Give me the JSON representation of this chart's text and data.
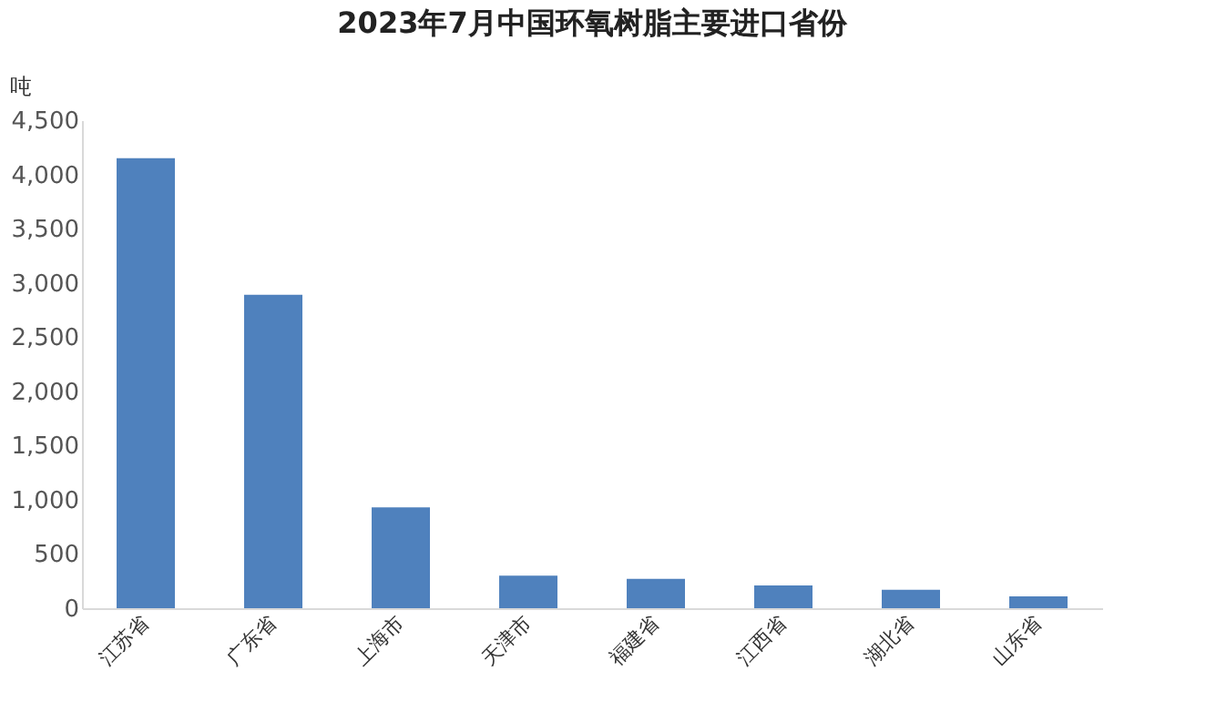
{
  "chart_data": {
    "type": "bar",
    "title": "2023年7月中国环氧树脂主要进口省份",
    "ylabel": "吨",
    "categories": [
      "江苏省",
      "广东省",
      "上海市",
      "天津市",
      "福建省",
      "江西省",
      "湖北省",
      "山东省"
    ],
    "values": [
      4150,
      2890,
      930,
      300,
      270,
      210,
      170,
      110
    ],
    "color": "#4f81bd",
    "ylim": [
      0,
      4500
    ],
    "yticks": [
      0,
      500,
      {
        "value": 1000,
        "label": "1,000"
      },
      {
        "value": 1500,
        "label": "1,500"
      },
      {
        "value": 2000,
        "label": "2,000"
      },
      {
        "value": 2500,
        "label": "2,500"
      },
      {
        "value": 3000,
        "label": "3,000"
      },
      {
        "value": 3500,
        "label": "3,500"
      },
      {
        "value": 4000,
        "label": "4,000"
      },
      {
        "value": 4500,
        "label": "4,500"
      }
    ],
    "grid": false
  }
}
